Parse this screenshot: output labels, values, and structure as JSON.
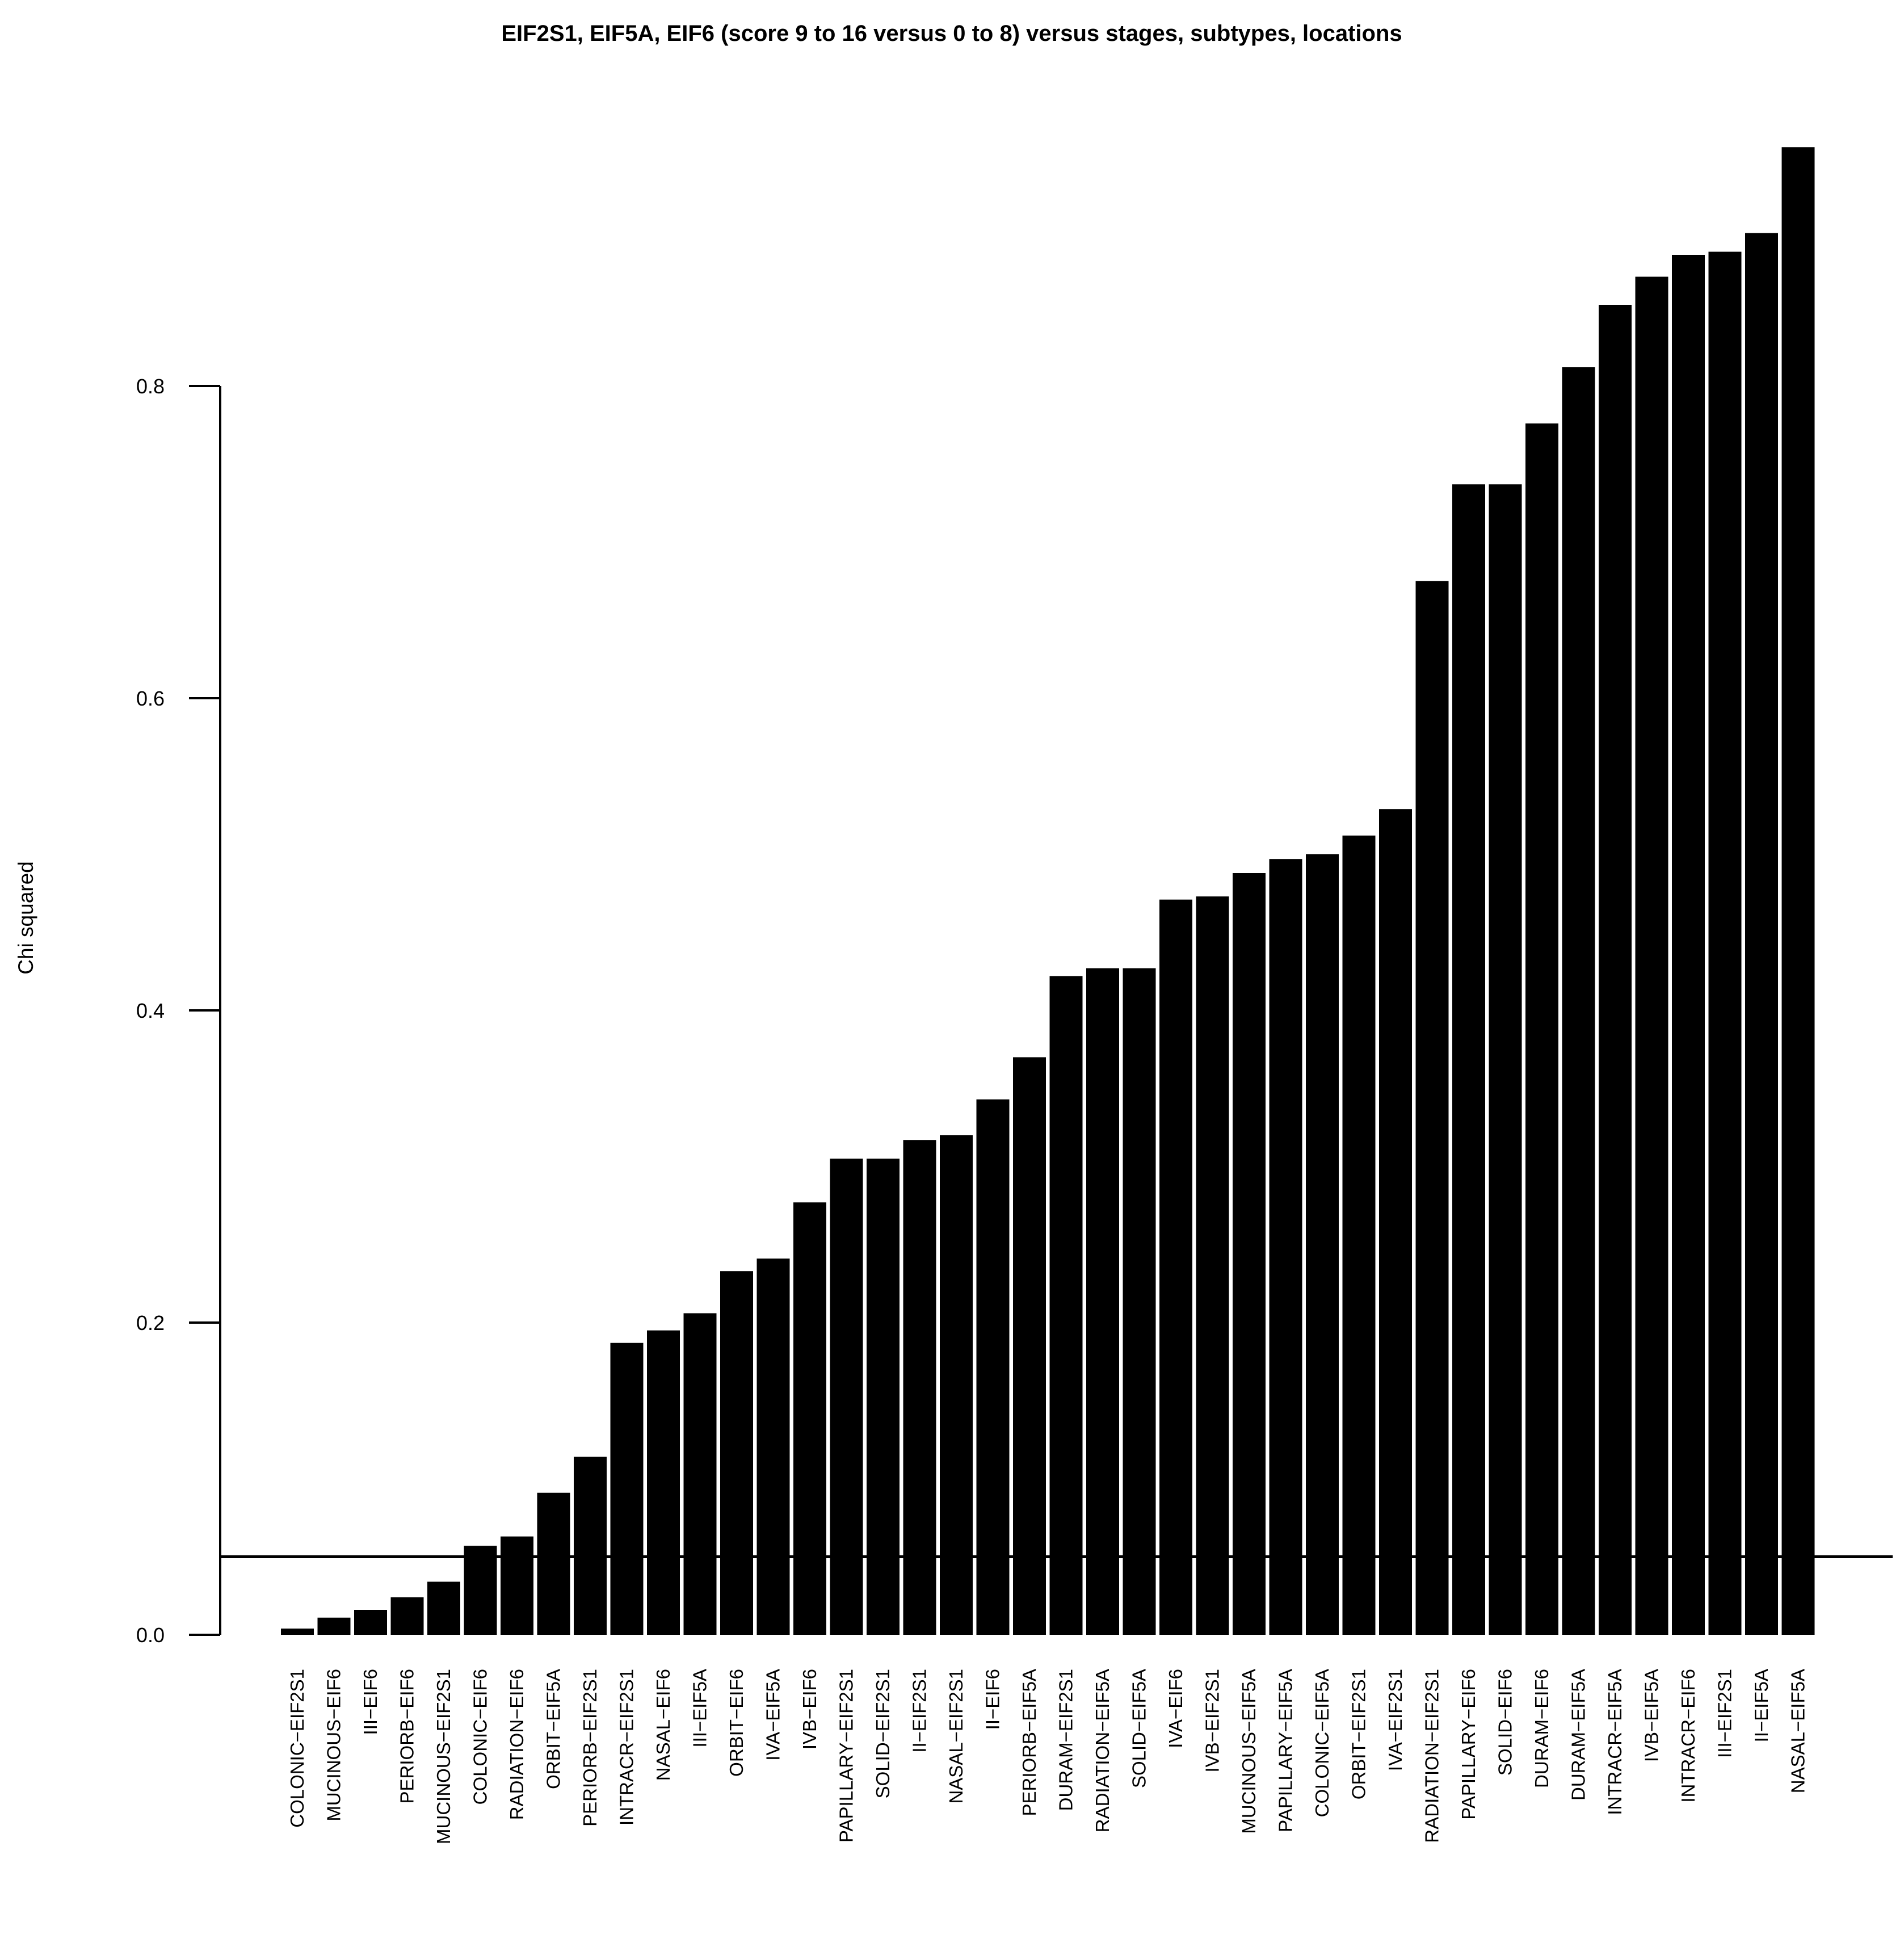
{
  "chart_data": {
    "type": "bar",
    "title": "EIF2S1, EIF5A, EIF6 (score 9 to 16 versus 0 to 8) versus stages, subtypes, locations",
    "xlabel": "",
    "ylabel": "Chi squared",
    "ylim": [
      0,
      0.95
    ],
    "yticks": [
      "0.0",
      "0.2",
      "0.4",
      "0.6",
      "0.8"
    ],
    "reference_line": 0.05,
    "bar_color": "#000000",
    "grid": false,
    "legend": "none",
    "categories": [
      "COLONIC−EIF2S1",
      "MUCINOUS−EIF6",
      "III−EIF6",
      "PERIORB−EIF6",
      "MUCINOUS−EIF2S1",
      "COLONIC−EIF6",
      "RADIATION−EIF6",
      "ORBIT−EIF5A",
      "PERIORB−EIF2S1",
      "INTRACR−EIF2S1",
      "NASAL−EIF6",
      "III−EIF5A",
      "ORBIT−EIF6",
      "IVA−EIF5A",
      "IVB−EIF6",
      "PAPILLARY−EIF2S1",
      "SOLID−EIF2S1",
      "II−EIF2S1",
      "NASAL−EIF2S1",
      "II−EIF6",
      "PERIORB−EIF5A",
      "DURAM−EIF2S1",
      "RADIATION−EIF5A",
      "SOLID−EIF5A",
      "IVA−EIF6",
      "IVB−EIF2S1",
      "MUCINOUS−EIF5A",
      "PAPILLARY−EIF5A",
      "COLONIC−EIF5A",
      "ORBIT−EIF2S1",
      "IVA−EIF2S1",
      "RADIATION−EIF2S1",
      "PAPILLARY−EIF6",
      "SOLID−EIF6",
      "DURAM−EIF6",
      "DURAM−EIF5A",
      "INTRACR−EIF5A",
      "IVB−EIF5A",
      "INTRACR−EIF6",
      "III−EIF2S1",
      "II−EIF5A",
      "NASAL−EIF5A"
    ],
    "values": [
      0.004,
      0.011,
      0.016,
      0.024,
      0.034,
      0.057,
      0.063,
      0.091,
      0.114,
      0.187,
      0.195,
      0.206,
      0.233,
      0.241,
      0.277,
      0.305,
      0.305,
      0.317,
      0.32,
      0.343,
      0.37,
      0.422,
      0.427,
      0.427,
      0.471,
      0.473,
      0.488,
      0.497,
      0.5,
      0.512,
      0.529,
      0.675,
      0.737,
      0.737,
      0.776,
      0.812,
      0.852,
      0.87,
      0.884,
      0.886,
      0.898,
      0.953
    ]
  }
}
